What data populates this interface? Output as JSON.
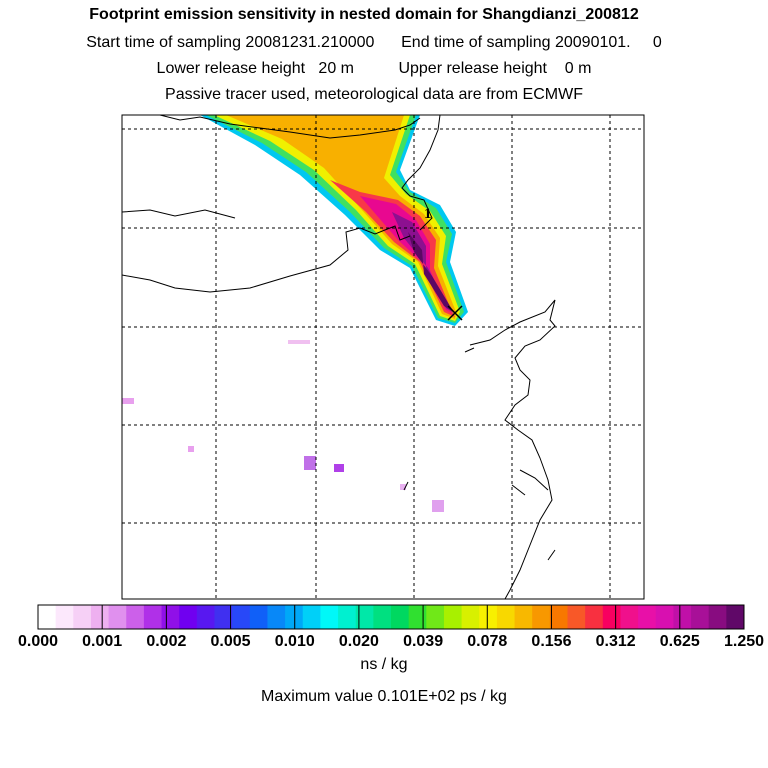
{
  "header": {
    "title": "Footprint emission sensitivity in nested domain for Shangdianzi_200812",
    "sampling_line": "Start time of sampling 20081231.210000      End time of sampling 20090101.     0",
    "release_line": "Lower release height   20 m          Upper release height    0 m",
    "tracer_line": "Passive tracer used, meteorological data are from ECMWF"
  },
  "chart_data": {
    "type": "heatmap",
    "title": "Footprint emission sensitivity in nested domain for Shangdianzi_200812",
    "colorbar": {
      "tick_labels": [
        "0.000",
        "0.001",
        "0.002",
        "0.005",
        "0.010",
        "0.020",
        "0.039",
        "0.078",
        "0.156",
        "0.312",
        "0.625",
        "1.250"
      ],
      "colors": [
        "#ffffff",
        "#fce8fc",
        "#f6d0f6",
        "#eeb0f0",
        "#e090ee",
        "#cc60ea",
        "#b030e8",
        "#9010e8",
        "#7000f0",
        "#5818f0",
        "#4030f0",
        "#2848f8",
        "#1060f8",
        "#0888f8",
        "#00a8f8",
        "#00d0f8",
        "#00f8f8",
        "#00f0d0",
        "#00e8a8",
        "#00e080",
        "#00d860",
        "#30e030",
        "#70e818",
        "#a8f000",
        "#d8f000",
        "#f8f000",
        "#f8d800",
        "#f8b800",
        "#f89800",
        "#f87800",
        "#f85828",
        "#f83040",
        "#f80060",
        "#f0108c",
        "#e810a8",
        "#d810b0",
        "#c010a8",
        "#a81098",
        "#880c80",
        "#600868"
      ],
      "unit_label": "ns / kg"
    },
    "max_value_label": "Maximum value  0.101E+02 ps / kg",
    "receptor_marker": "1",
    "grid": true
  }
}
